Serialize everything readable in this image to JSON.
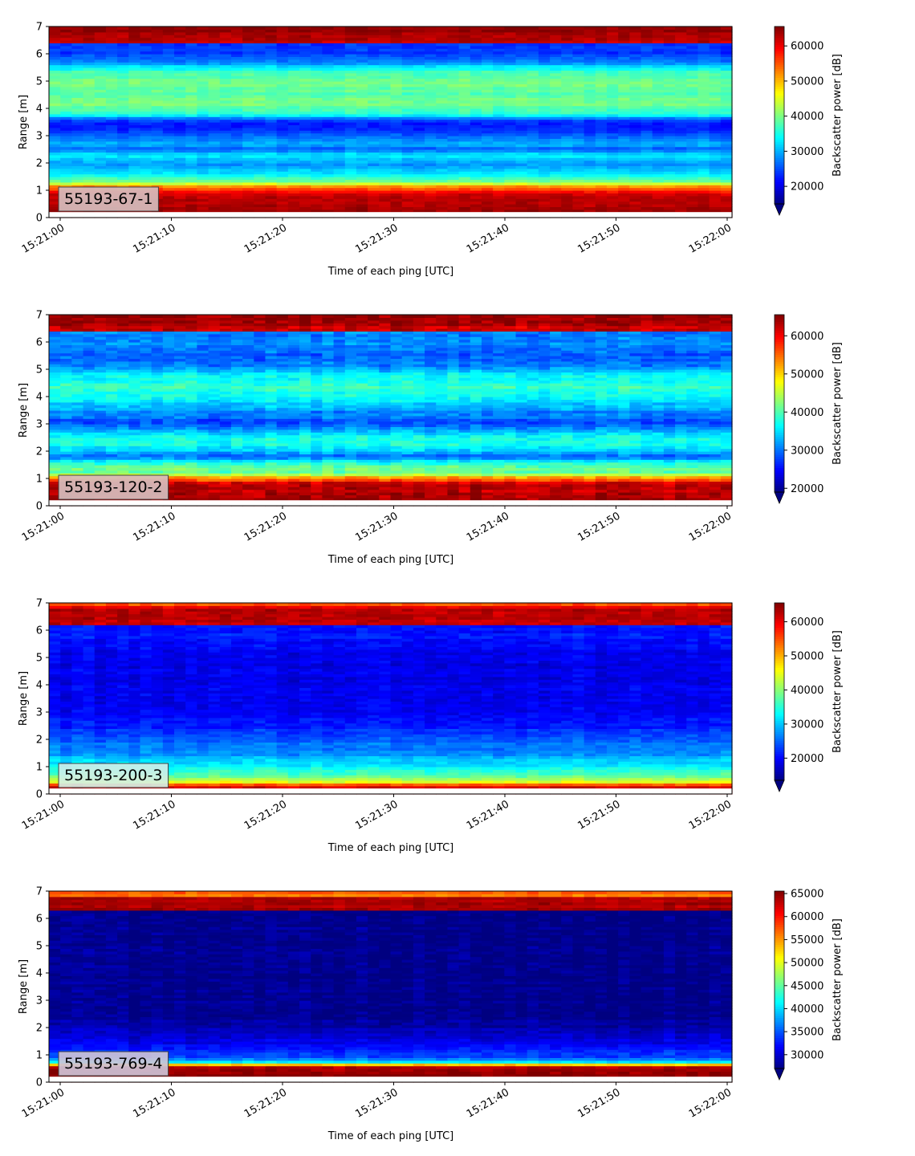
{
  "chart_data": [
    {
      "type": "heatmap",
      "label": "55193-67-1",
      "xlabel": "Time of each ping [UTC]",
      "ylabel": "Range [m]",
      "colorbar_label": "Backscatter power [dB]",
      "colormap": "jet",
      "colorbar_extend": "min",
      "ylim": [
        0,
        7
      ],
      "yticks": [
        "0",
        "1",
        "2",
        "3",
        "4",
        "5",
        "6",
        "7"
      ],
      "xticks": [
        "15:21:00",
        "15:21:10",
        "15:21:20",
        "15:21:30",
        "15:21:40",
        "15:21:50",
        "15:22:00"
      ],
      "clim": [
        15000,
        65535
      ],
      "cticks": [
        {
          "value": 20000,
          "label": "20000"
        },
        {
          "value": 30000,
          "label": "30000"
        },
        {
          "value": 40000,
          "label": "40000"
        },
        {
          "value": 50000,
          "label": "50000"
        },
        {
          "value": 60000,
          "label": "60000"
        }
      ],
      "profile": [
        [
          0.15,
          65535
        ],
        [
          0.2,
          65535
        ],
        [
          0.3,
          63000
        ],
        [
          0.8,
          63000
        ],
        [
          1.0,
          58000
        ],
        [
          1.15,
          52000
        ],
        [
          1.3,
          40000
        ],
        [
          1.6,
          33000
        ],
        [
          2.0,
          29000
        ],
        [
          2.3,
          33000
        ],
        [
          2.5,
          26000
        ],
        [
          2.7,
          30000
        ],
        [
          3.0,
          26000
        ],
        [
          3.3,
          22000
        ],
        [
          3.6,
          24000
        ],
        [
          3.8,
          36000
        ],
        [
          4.2,
          40000
        ],
        [
          4.5,
          38000
        ],
        [
          5.0,
          40000
        ],
        [
          5.4,
          36000
        ],
        [
          5.7,
          28000
        ],
        [
          6.0,
          24000
        ],
        [
          6.35,
          24000
        ],
        [
          6.4,
          62000
        ],
        [
          7.0,
          65000
        ]
      ],
      "noise": 2500
    },
    {
      "type": "heatmap",
      "label": "55193-120-2",
      "xlabel": "Time of each ping [UTC]",
      "ylabel": "Range [m]",
      "colorbar_label": "Backscatter power [dB]",
      "colormap": "jet",
      "colorbar_extend": "min",
      "ylim": [
        0,
        7
      ],
      "yticks": [
        "0",
        "1",
        "2",
        "3",
        "4",
        "5",
        "6",
        "7"
      ],
      "xticks": [
        "15:21:00",
        "15:21:10",
        "15:21:20",
        "15:21:30",
        "15:21:40",
        "15:21:50",
        "15:22:00"
      ],
      "clim": [
        19000,
        65535
      ],
      "cticks": [
        {
          "value": 20000,
          "label": "20000"
        },
        {
          "value": 30000,
          "label": "30000"
        },
        {
          "value": 40000,
          "label": "40000"
        },
        {
          "value": 50000,
          "label": "50000"
        },
        {
          "value": 60000,
          "label": "60000"
        }
      ],
      "profile": [
        [
          0.15,
          65535
        ],
        [
          0.2,
          65535
        ],
        [
          0.3,
          63000
        ],
        [
          0.8,
          63000
        ],
        [
          1.0,
          55000
        ],
        [
          1.2,
          42000
        ],
        [
          1.5,
          40000
        ],
        [
          1.8,
          30000
        ],
        [
          2.1,
          36000
        ],
        [
          2.5,
          38000
        ],
        [
          2.8,
          33000
        ],
        [
          3.0,
          28000
        ],
        [
          3.3,
          30000
        ],
        [
          3.6,
          33000
        ],
        [
          4.0,
          37000
        ],
        [
          4.4,
          39000
        ],
        [
          4.8,
          36000
        ],
        [
          5.2,
          30000
        ],
        [
          5.6,
          29000
        ],
        [
          6.0,
          31000
        ],
        [
          6.35,
          31000
        ],
        [
          6.4,
          62000
        ],
        [
          7.0,
          65000
        ]
      ],
      "noise": 3500
    },
    {
      "type": "heatmap",
      "label": "55193-200-3",
      "xlabel": "Time of each ping [UTC]",
      "ylabel": "Range [m]",
      "colorbar_label": "Backscatter power [dB]",
      "colormap": "jet",
      "colorbar_extend": "min",
      "ylim": [
        0,
        7
      ],
      "yticks": [
        "0",
        "1",
        "2",
        "3",
        "4",
        "5",
        "6",
        "7"
      ],
      "xticks": [
        "15:21:00",
        "15:21:10",
        "15:21:20",
        "15:21:30",
        "15:21:40",
        "15:21:50",
        "15:22:00"
      ],
      "clim": [
        13500,
        65535
      ],
      "cticks": [
        {
          "value": 20000,
          "label": "20000"
        },
        {
          "value": 30000,
          "label": "30000"
        },
        {
          "value": 40000,
          "label": "40000"
        },
        {
          "value": 50000,
          "label": "50000"
        },
        {
          "value": 60000,
          "label": "60000"
        }
      ],
      "profile": [
        [
          0.1,
          63000
        ],
        [
          0.3,
          60000
        ],
        [
          0.45,
          45000
        ],
        [
          0.7,
          37000
        ],
        [
          1.0,
          33000
        ],
        [
          1.5,
          27000
        ],
        [
          2.0,
          25000
        ],
        [
          2.5,
          21000
        ],
        [
          3.0,
          20000
        ],
        [
          4.0,
          19000
        ],
        [
          5.0,
          19000
        ],
        [
          5.7,
          21000
        ],
        [
          6.2,
          21000
        ],
        [
          6.25,
          62000
        ],
        [
          6.8,
          63000
        ],
        [
          7.0,
          52000
        ]
      ],
      "noise": 3000
    },
    {
      "type": "heatmap",
      "label": "55193-769-4",
      "xlabel": "Time of each ping [UTC]",
      "ylabel": "Range [m]",
      "colorbar_label": "Backscatter power [dB]",
      "colormap": "jet",
      "colorbar_extend": "min",
      "ylim": [
        0,
        7
      ],
      "yticks": [
        "0",
        "1",
        "2",
        "3",
        "4",
        "5",
        "6",
        "7"
      ],
      "xticks": [
        "15:21:00",
        "15:21:10",
        "15:21:20",
        "15:21:30",
        "15:21:40",
        "15:21:50",
        "15:22:00"
      ],
      "clim": [
        27000,
        65535
      ],
      "cticks": [
        {
          "value": 30000,
          "label": "30000"
        },
        {
          "value": 35000,
          "label": "35000"
        },
        {
          "value": 40000,
          "label": "40000"
        },
        {
          "value": 45000,
          "label": "45000"
        },
        {
          "value": 50000,
          "label": "50000"
        },
        {
          "value": 55000,
          "label": "55000"
        },
        {
          "value": 60000,
          "label": "60000"
        },
        {
          "value": 65000,
          "label": "65000"
        }
      ],
      "profile": [
        [
          0.2,
          65535
        ],
        [
          0.6,
          64000
        ],
        [
          0.7,
          42000
        ],
        [
          0.9,
          35000
        ],
        [
          1.3,
          32000
        ],
        [
          1.7,
          30000
        ],
        [
          2.1,
          28500
        ],
        [
          2.5,
          27500
        ],
        [
          6.3,
          27500
        ],
        [
          6.35,
          64000
        ],
        [
          6.75,
          64000
        ],
        [
          6.8,
          56000
        ],
        [
          7.0,
          58000
        ]
      ],
      "noise": 2000
    }
  ]
}
